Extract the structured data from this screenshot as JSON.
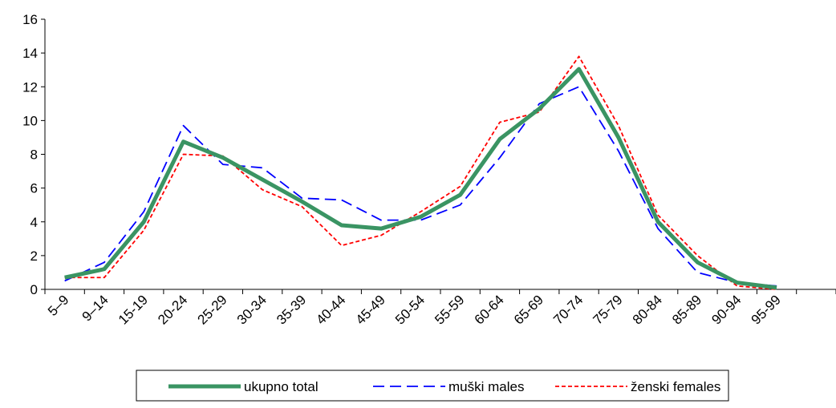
{
  "chart_data": {
    "type": "line",
    "categories": [
      "5–9",
      "9–14",
      "15-19",
      "20-24",
      "25-29",
      "30-34",
      "35-39",
      "40-44",
      "45-49",
      "50-54",
      "55-59",
      "60-64",
      "65-69",
      "70-74",
      "75-79",
      "80-84",
      "85-89",
      "90-94",
      "95-99",
      null
    ],
    "series": [
      {
        "name": "ukupno total",
        "color": "#3a9463",
        "dash": "solid",
        "values": [
          0.7,
          1.2,
          4.0,
          8.75,
          7.8,
          6.5,
          5.2,
          3.8,
          3.6,
          4.3,
          5.6,
          8.9,
          10.7,
          13.05,
          9.0,
          4.0,
          1.6,
          0.4,
          0.1,
          null
        ]
      },
      {
        "name": "muški males",
        "color": "#0000ff",
        "dash": "long-dash",
        "values": [
          0.5,
          1.6,
          4.6,
          9.7,
          7.4,
          7.2,
          5.4,
          5.3,
          4.1,
          4.1,
          5.0,
          7.8,
          11.0,
          12.0,
          8.2,
          3.6,
          1.0,
          0.4,
          0.2,
          null
        ]
      },
      {
        "name": "ženski females",
        "color": "#ff0000",
        "dash": "short-dash",
        "values": [
          0.7,
          0.7,
          3.5,
          8.0,
          7.9,
          5.9,
          4.9,
          2.6,
          3.2,
          4.6,
          6.1,
          9.9,
          10.5,
          13.8,
          9.7,
          4.4,
          2.0,
          0.2,
          0.0,
          null
        ]
      }
    ],
    "ylim": [
      0,
      16
    ],
    "yticks": [
      0,
      2,
      4,
      6,
      8,
      10,
      12,
      14,
      16
    ],
    "grid": false,
    "legend": "bottom"
  }
}
